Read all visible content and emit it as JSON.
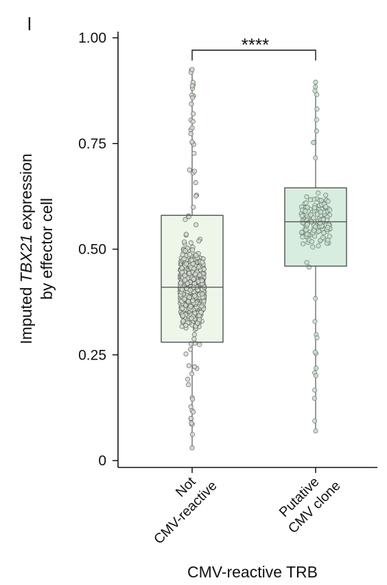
{
  "panel_label": "l",
  "chart_data": {
    "type": "box",
    "xlabel": "CMV-reactive TRB",
    "ylabel_parts": [
      "Imputed ",
      "TBX21",
      " expression"
    ],
    "ylabel_line2": "by effector cell",
    "ylim": [
      0,
      1.0
    ],
    "yticks": [
      0,
      0.25,
      0.5,
      0.75,
      1.0
    ],
    "ytick_labels": [
      "0",
      "0.25",
      "0.50",
      "0.75",
      "1.00"
    ],
    "categories": [
      {
        "line1": "Not",
        "line2": "CMV-reactive"
      },
      {
        "line1": "Putative",
        "line2": "CMV clone"
      }
    ],
    "boxes": [
      {
        "q1": 0.28,
        "median": 0.41,
        "q3": 0.58,
        "min": 0.03,
        "max": 0.925,
        "fill": "#eef6ea",
        "point_fill": "#d3dccf",
        "point_stroke": "#5f6360",
        "n_points": 900
      },
      {
        "q1": 0.46,
        "median": 0.565,
        "q3": 0.645,
        "min": 0.07,
        "max": 0.895,
        "fill": "#d7eddf",
        "point_fill": "#c9dfcf",
        "point_stroke": "#6a786e",
        "n_points": 170
      }
    ],
    "significance": "****",
    "grid": false
  }
}
